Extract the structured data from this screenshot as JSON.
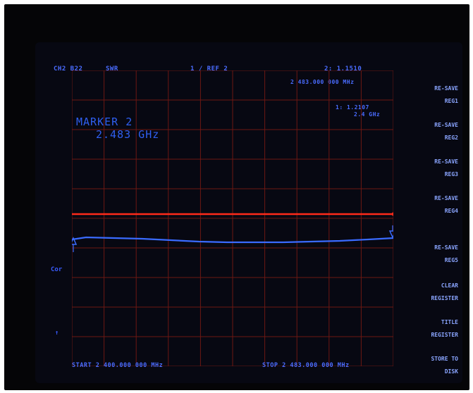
{
  "header": {
    "channel_label": "CH2 B22",
    "format_label": "SWR",
    "scale_label": "1 / REF 2",
    "marker_readout": "2: 1.1510",
    "marker_freq": "2 483.000 000 MHz"
  },
  "marker_annotation": {
    "line1": "1: 1.2107",
    "line2": "2.4 GHz"
  },
  "marker_block": {
    "line1": "MARKER 2",
    "line2": "2.483 GHz"
  },
  "softkeys": [
    {
      "line1": "RE-SAVE",
      "line2": "REG1"
    },
    {
      "line1": "RE-SAVE",
      "line2": "REG2"
    },
    {
      "line1": "RE-SAVE",
      "line2": "REG3"
    },
    {
      "line1": "RE-SAVE",
      "line2": "REG4"
    },
    {
      "line1": "RE-SAVE",
      "line2": "REG5"
    },
    {
      "line1": "CLEAR",
      "line2": "REGISTER"
    },
    {
      "line1": "TITLE",
      "line2": "REGISTER"
    },
    {
      "line1": "STORE TO",
      "line2": "DISK"
    }
  ],
  "side_labels": {
    "cor": "Cor",
    "dot": "↑"
  },
  "footer": {
    "start": "START 2 400.000 000 MHz",
    "stop": "STOP 2 483.000 000 MHz"
  },
  "colors": {
    "grid": "#7a1a14",
    "trace": "#3a6bff",
    "reference_line": "#ff2a1a",
    "text": "#4a6cff"
  }
}
